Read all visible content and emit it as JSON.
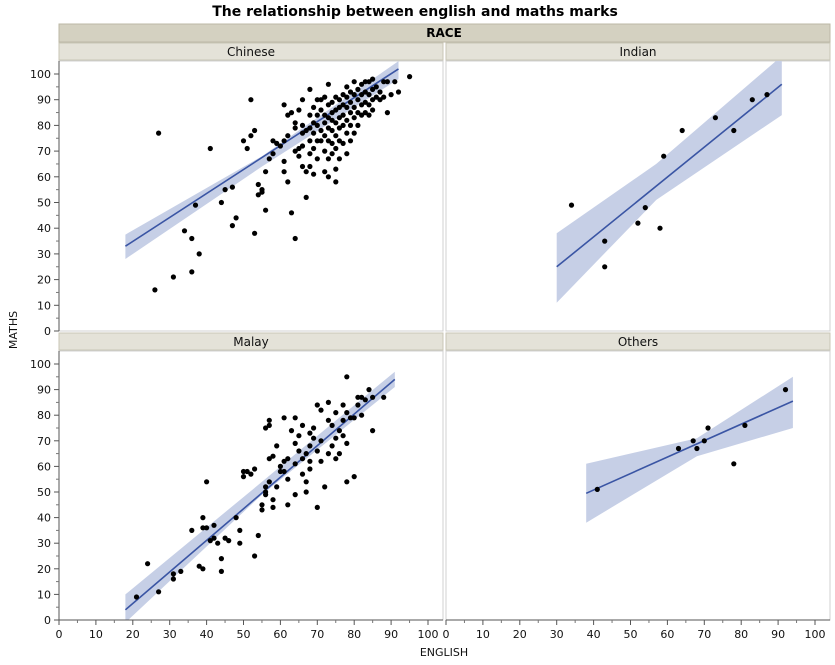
{
  "chart_data": {
    "type": "scatter",
    "title": "The relationship between english and maths marks",
    "group_label": "RACE",
    "xlabel": "ENGLISH",
    "ylabel": "MATHS",
    "xlim": [
      0,
      100
    ],
    "ylim": [
      0,
      100
    ],
    "x_ticks": [
      0,
      10,
      20,
      30,
      40,
      50,
      60,
      70,
      80,
      90,
      100
    ],
    "y_ticks": [
      0,
      10,
      20,
      30,
      40,
      50,
      60,
      70,
      80,
      90,
      100
    ],
    "colors": {
      "points": "#000000",
      "fit_line": "#3a55a4",
      "confidence_band": "#c6cfe6",
      "header_bg": "#e4e2d8",
      "group_header_bg": "#d4d1c1"
    },
    "panels": [
      {
        "name": "Chinese",
        "fit": {
          "x": [
            18,
            92
          ],
          "y": [
            33,
            102
          ]
        },
        "band": {
          "x": [
            18,
            55,
            92
          ],
          "upper": [
            37.5,
            68,
            105
          ],
          "lower": [
            28,
            64,
            98
          ]
        },
        "points": [
          [
            26,
            16
          ],
          [
            27,
            77
          ],
          [
            31,
            21
          ],
          [
            34,
            39
          ],
          [
            36,
            36
          ],
          [
            36,
            23
          ],
          [
            37,
            49
          ],
          [
            38,
            30
          ],
          [
            41,
            71
          ],
          [
            44,
            50
          ],
          [
            45,
            55
          ],
          [
            47,
            56
          ],
          [
            47,
            41
          ],
          [
            48,
            44
          ],
          [
            50,
            74
          ],
          [
            51,
            71
          ],
          [
            52,
            90
          ],
          [
            52,
            76
          ],
          [
            53,
            78
          ],
          [
            54,
            53
          ],
          [
            54,
            57
          ],
          [
            53,
            38
          ],
          [
            55,
            54
          ],
          [
            55,
            55
          ],
          [
            56,
            62
          ],
          [
            56,
            47
          ],
          [
            57,
            67
          ],
          [
            58,
            69
          ],
          [
            58,
            74
          ],
          [
            59,
            73
          ],
          [
            60,
            72
          ],
          [
            61,
            88
          ],
          [
            61,
            74
          ],
          [
            61,
            66
          ],
          [
            61,
            62
          ],
          [
            62,
            58
          ],
          [
            62,
            76
          ],
          [
            62,
            84
          ],
          [
            63,
            85
          ],
          [
            63,
            46
          ],
          [
            64,
            36
          ],
          [
            64,
            70
          ],
          [
            64,
            81
          ],
          [
            64,
            79
          ],
          [
            65,
            86
          ],
          [
            65,
            71
          ],
          [
            65,
            68
          ],
          [
            66,
            90
          ],
          [
            66,
            80
          ],
          [
            66,
            77
          ],
          [
            66,
            72
          ],
          [
            66,
            64
          ],
          [
            67,
            78
          ],
          [
            67,
            62
          ],
          [
            67,
            52
          ],
          [
            68,
            94
          ],
          [
            68,
            84
          ],
          [
            68,
            79
          ],
          [
            68,
            74
          ],
          [
            68,
            69
          ],
          [
            68,
            64
          ],
          [
            69,
            87
          ],
          [
            69,
            81
          ],
          [
            69,
            77
          ],
          [
            69,
            71
          ],
          [
            69,
            61
          ],
          [
            70,
            90
          ],
          [
            70,
            84
          ],
          [
            70,
            80
          ],
          [
            70,
            74
          ],
          [
            70,
            67
          ],
          [
            71,
            90
          ],
          [
            71,
            86
          ],
          [
            71,
            78
          ],
          [
            71,
            74
          ],
          [
            72,
            91
          ],
          [
            72,
            84
          ],
          [
            72,
            81
          ],
          [
            72,
            76
          ],
          [
            72,
            70
          ],
          [
            72,
            62
          ],
          [
            73,
            96
          ],
          [
            73,
            88
          ],
          [
            73,
            83
          ],
          [
            73,
            79
          ],
          [
            73,
            74
          ],
          [
            73,
            67
          ],
          [
            73,
            60
          ],
          [
            74,
            89
          ],
          [
            74,
            85
          ],
          [
            74,
            82
          ],
          [
            74,
            78
          ],
          [
            74,
            73
          ],
          [
            74,
            69
          ],
          [
            75,
            91
          ],
          [
            75,
            86
          ],
          [
            75,
            81
          ],
          [
            75,
            76
          ],
          [
            75,
            71
          ],
          [
            75,
            63
          ],
          [
            75,
            58
          ],
          [
            76,
            90
          ],
          [
            76,
            87
          ],
          [
            76,
            83
          ],
          [
            76,
            79
          ],
          [
            76,
            74
          ],
          [
            76,
            67
          ],
          [
            77,
            92
          ],
          [
            77,
            88
          ],
          [
            77,
            84
          ],
          [
            77,
            80
          ],
          [
            77,
            73
          ],
          [
            78,
            95
          ],
          [
            78,
            91
          ],
          [
            78,
            87
          ],
          [
            78,
            82
          ],
          [
            78,
            77
          ],
          [
            78,
            69
          ],
          [
            79,
            93
          ],
          [
            79,
            89
          ],
          [
            79,
            85
          ],
          [
            79,
            80
          ],
          [
            79,
            74
          ],
          [
            80,
            97
          ],
          [
            80,
            92
          ],
          [
            80,
            87
          ],
          [
            80,
            83
          ],
          [
            80,
            77
          ],
          [
            81,
            94
          ],
          [
            81,
            90
          ],
          [
            81,
            85
          ],
          [
            81,
            80
          ],
          [
            82,
            96
          ],
          [
            82,
            92
          ],
          [
            82,
            88
          ],
          [
            82,
            84
          ],
          [
            83,
            97
          ],
          [
            83,
            93
          ],
          [
            83,
            89
          ],
          [
            83,
            85
          ],
          [
            84,
            97
          ],
          [
            84,
            92
          ],
          [
            84,
            88
          ],
          [
            84,
            84
          ],
          [
            85,
            98
          ],
          [
            85,
            94
          ],
          [
            85,
            90
          ],
          [
            85,
            86
          ],
          [
            86,
            95
          ],
          [
            86,
            91
          ],
          [
            87,
            93
          ],
          [
            87,
            90
          ],
          [
            88,
            97
          ],
          [
            88,
            91
          ],
          [
            89,
            97
          ],
          [
            89,
            85
          ],
          [
            90,
            92
          ],
          [
            91,
            97
          ],
          [
            92,
            93
          ],
          [
            95,
            99
          ]
        ]
      },
      {
        "name": "Indian",
        "fit": {
          "x": [
            30,
            91
          ],
          "y": [
            25,
            96
          ]
        },
        "band": {
          "x": [
            30,
            57,
            91
          ],
          "upper": [
            38,
            65,
            107
          ],
          "lower": [
            11,
            51,
            84
          ]
        },
        "points": [
          [
            34,
            49
          ],
          [
            43,
            35
          ],
          [
            43,
            25
          ],
          [
            52,
            42
          ],
          [
            54,
            48
          ],
          [
            58,
            40
          ],
          [
            59,
            68
          ],
          [
            64,
            78
          ],
          [
            73,
            83
          ],
          [
            78,
            78
          ],
          [
            83,
            90
          ],
          [
            87,
            92
          ]
        ]
      },
      {
        "name": "Malay",
        "fit": {
          "x": [
            18,
            91
          ],
          "y": [
            4,
            94
          ]
        },
        "band": {
          "x": [
            18,
            55,
            91
          ],
          "upper": [
            10,
            54,
            97
          ],
          "lower": [
            -1,
            49,
            91
          ]
        },
        "points": [
          [
            21,
            9
          ],
          [
            24,
            22
          ],
          [
            27,
            11
          ],
          [
            31,
            16
          ],
          [
            31,
            18
          ],
          [
            33,
            19
          ],
          [
            36,
            35
          ],
          [
            38,
            21
          ],
          [
            39,
            40
          ],
          [
            39,
            36
          ],
          [
            39,
            20
          ],
          [
            40,
            54
          ],
          [
            40,
            36
          ],
          [
            41,
            31
          ],
          [
            42,
            37
          ],
          [
            42,
            32
          ],
          [
            43,
            30
          ],
          [
            44,
            24
          ],
          [
            44,
            19
          ],
          [
            45,
            32
          ],
          [
            46,
            31
          ],
          [
            48,
            40
          ],
          [
            49,
            35
          ],
          [
            49,
            30
          ],
          [
            50,
            56
          ],
          [
            50,
            58
          ],
          [
            51,
            58
          ],
          [
            52,
            57
          ],
          [
            53,
            25
          ],
          [
            53,
            59
          ],
          [
            54,
            33
          ],
          [
            55,
            43
          ],
          [
            55,
            45
          ],
          [
            56,
            75
          ],
          [
            56,
            52
          ],
          [
            56,
            50
          ],
          [
            56,
            49
          ],
          [
            57,
            63
          ],
          [
            57,
            78
          ],
          [
            57,
            76
          ],
          [
            57,
            54
          ],
          [
            58,
            64
          ],
          [
            58,
            47
          ],
          [
            58,
            44
          ],
          [
            59,
            68
          ],
          [
            59,
            52
          ],
          [
            60,
            60
          ],
          [
            60,
            58
          ],
          [
            61,
            62
          ],
          [
            61,
            58
          ],
          [
            61,
            79
          ],
          [
            62,
            63
          ],
          [
            62,
            45
          ],
          [
            62,
            55
          ],
          [
            63,
            74
          ],
          [
            64,
            79
          ],
          [
            64,
            69
          ],
          [
            64,
            61
          ],
          [
            64,
            49
          ],
          [
            65,
            72
          ],
          [
            65,
            66
          ],
          [
            66,
            76
          ],
          [
            66,
            63
          ],
          [
            66,
            57
          ],
          [
            67,
            65
          ],
          [
            67,
            54
          ],
          [
            67,
            50
          ],
          [
            68,
            73
          ],
          [
            68,
            68
          ],
          [
            68,
            62
          ],
          [
            68,
            59
          ],
          [
            69,
            75
          ],
          [
            69,
            71
          ],
          [
            70,
            84
          ],
          [
            70,
            66
          ],
          [
            70,
            44
          ],
          [
            71,
            82
          ],
          [
            71,
            70
          ],
          [
            71,
            62
          ],
          [
            72,
            52
          ],
          [
            73,
            85
          ],
          [
            73,
            78
          ],
          [
            73,
            65
          ],
          [
            74,
            76
          ],
          [
            74,
            68
          ],
          [
            75,
            81
          ],
          [
            75,
            71
          ],
          [
            75,
            63
          ],
          [
            76,
            74
          ],
          [
            76,
            65
          ],
          [
            77,
            84
          ],
          [
            77,
            78
          ],
          [
            77,
            72
          ],
          [
            78,
            95
          ],
          [
            78,
            81
          ],
          [
            78,
            69
          ],
          [
            78,
            54
          ],
          [
            79,
            79
          ],
          [
            80,
            79
          ],
          [
            80,
            56
          ],
          [
            81,
            87
          ],
          [
            81,
            84
          ],
          [
            82,
            87
          ],
          [
            82,
            80
          ],
          [
            83,
            86
          ],
          [
            84,
            90
          ],
          [
            85,
            87
          ],
          [
            85,
            74
          ],
          [
            88,
            87
          ]
        ]
      },
      {
        "name": "Others",
        "fit": {
          "x": [
            38,
            94
          ],
          "y": [
            49.5,
            85.5
          ]
        },
        "band": {
          "x": [
            38,
            68,
            94
          ],
          "upper": [
            61,
            71,
            95
          ],
          "lower": [
            38,
            64,
            75
          ]
        },
        "points": [
          [
            41,
            51
          ],
          [
            63,
            67
          ],
          [
            67,
            70
          ],
          [
            68,
            67
          ],
          [
            70,
            70
          ],
          [
            71,
            75
          ],
          [
            78,
            61
          ],
          [
            81,
            76
          ],
          [
            92,
            90
          ]
        ]
      }
    ]
  }
}
